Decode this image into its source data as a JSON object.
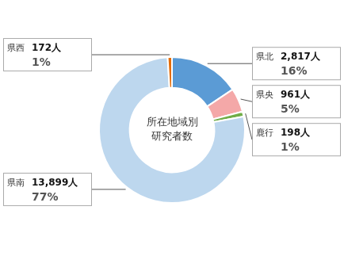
{
  "chart_data": {
    "type": "doughnut",
    "categories": [
      "県北",
      "県央",
      "鹿行",
      "県南",
      "県西"
    ],
    "values": [
      2817,
      961,
      198,
      13899,
      172
    ],
    "value_labels": [
      "2,817人",
      "961人",
      "198人",
      "13,899人",
      "172人"
    ],
    "percent": [
      16,
      5,
      1,
      77,
      1
    ],
    "percent_labels": [
      "16%",
      "5%",
      "1%",
      "77%",
      "1%"
    ],
    "colors": [
      "#5b9bd5",
      "#f4a8a8",
      "#70ad47",
      "#bdd7ee",
      "#e36c09"
    ],
    "annotations": [
      "所在地域別",
      "研究者数"
    ]
  }
}
